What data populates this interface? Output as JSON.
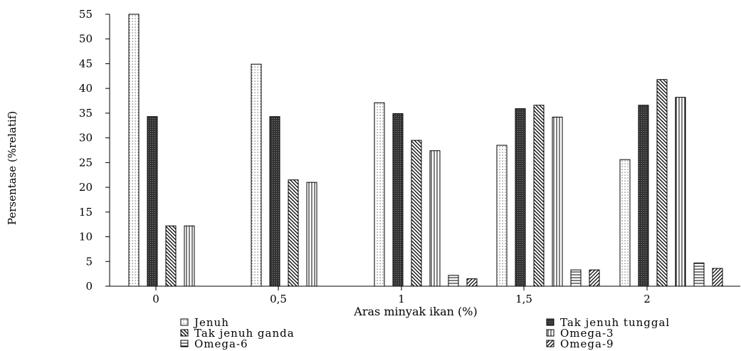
{
  "chart_data": {
    "type": "bar",
    "title": "",
    "xlabel": "Aras minyak ikan (%)",
    "ylabel": "Persentase (%relatif)",
    "ylim": [
      0,
      55
    ],
    "yticks": [
      "0",
      "5",
      "10",
      "15",
      "20",
      "25",
      "30",
      "35",
      "40",
      "45",
      "50",
      "55"
    ],
    "categories": [
      "0",
      "0,5",
      "1",
      "1,5",
      "2"
    ],
    "grid": false,
    "legend_position": "bottom",
    "series": [
      {
        "name": "Jenuh",
        "pattern": "dots",
        "values": [
          55,
          44.9,
          37.1,
          28.5,
          25.6
        ]
      },
      {
        "name": "Tak jenuh tunggal",
        "pattern": "dark-crosshatch",
        "values": [
          34.3,
          34.3,
          34.9,
          35.9,
          36.6
        ]
      },
      {
        "name": "Tak jenuh ganda",
        "pattern": "diagonal",
        "values": [
          12.2,
          21.5,
          29.5,
          36.6,
          41.8
        ]
      },
      {
        "name": "Omega-3",
        "pattern": "vertical-lines",
        "values": [
          12.2,
          21.0,
          27.4,
          34.2,
          38.2
        ]
      },
      {
        "name": "Omega-6",
        "pattern": "horizontal-lines",
        "values": [
          0,
          0,
          2.2,
          3.3,
          4.7
        ]
      },
      {
        "name": "Omega-9",
        "pattern": "cross-diagonal",
        "values": [
          0,
          0,
          1.5,
          3.3,
          3.6
        ]
      }
    ]
  }
}
